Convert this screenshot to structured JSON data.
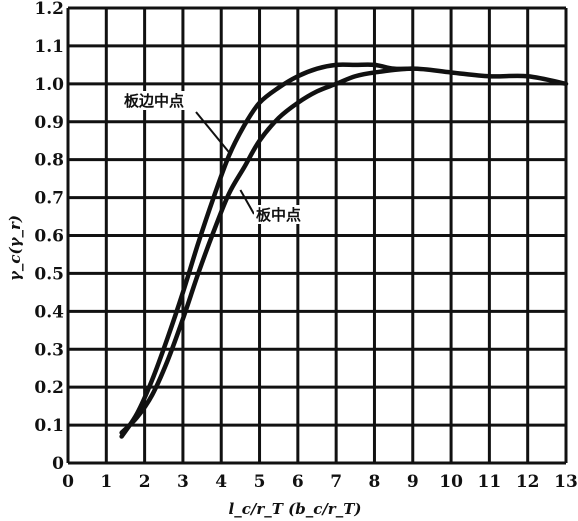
{
  "chart_data": {
    "type": "line",
    "title": "",
    "xlabel": "l_c/r_T (b_c/r_T)",
    "ylabel": "γ_c(γ_r)",
    "xlim": [
      0,
      13
    ],
    "ylim": [
      0,
      1.2
    ],
    "grid": true,
    "x_ticks": [
      "0",
      "1",
      "2",
      "3",
      "4",
      "5",
      "6",
      "7",
      "8",
      "9",
      "10",
      "11",
      "12",
      "13"
    ],
    "y_ticks": [
      "0",
      "0.1",
      "0.2",
      "0.3",
      "0.4",
      "0.5",
      "0.6",
      "0.7",
      "0.8",
      "0.9",
      "1.0",
      "1.1",
      "1.2"
    ],
    "series": [
      {
        "name": "板边中点",
        "x": [
          1.4,
          1.8,
          2.2,
          2.6,
          3.0,
          3.4,
          3.8,
          4.2,
          4.6,
          5.0,
          5.5,
          6.0,
          6.5,
          7.0,
          7.5,
          8.0,
          8.5,
          9.0
        ],
        "y": [
          0.07,
          0.13,
          0.22,
          0.33,
          0.45,
          0.58,
          0.7,
          0.81,
          0.89,
          0.95,
          0.99,
          1.02,
          1.04,
          1.05,
          1.05,
          1.05,
          1.04,
          1.04
        ]
      },
      {
        "name": "板中点",
        "x": [
          1.4,
          1.8,
          2.2,
          2.6,
          3.0,
          3.4,
          3.8,
          4.2,
          4.6,
          5.0,
          5.5,
          6.0,
          6.5,
          7.0,
          7.5,
          8.0,
          9.0,
          10.0,
          11.0,
          12.0,
          13.0
        ],
        "y": [
          0.08,
          0.12,
          0.18,
          0.27,
          0.38,
          0.5,
          0.61,
          0.71,
          0.78,
          0.85,
          0.91,
          0.95,
          0.98,
          1.0,
          1.02,
          1.03,
          1.04,
          1.03,
          1.02,
          1.02,
          1.0
        ]
      }
    ],
    "annotations": [
      {
        "text": "板边中点",
        "series": 0
      },
      {
        "text": "板中点",
        "series": 1
      }
    ]
  }
}
